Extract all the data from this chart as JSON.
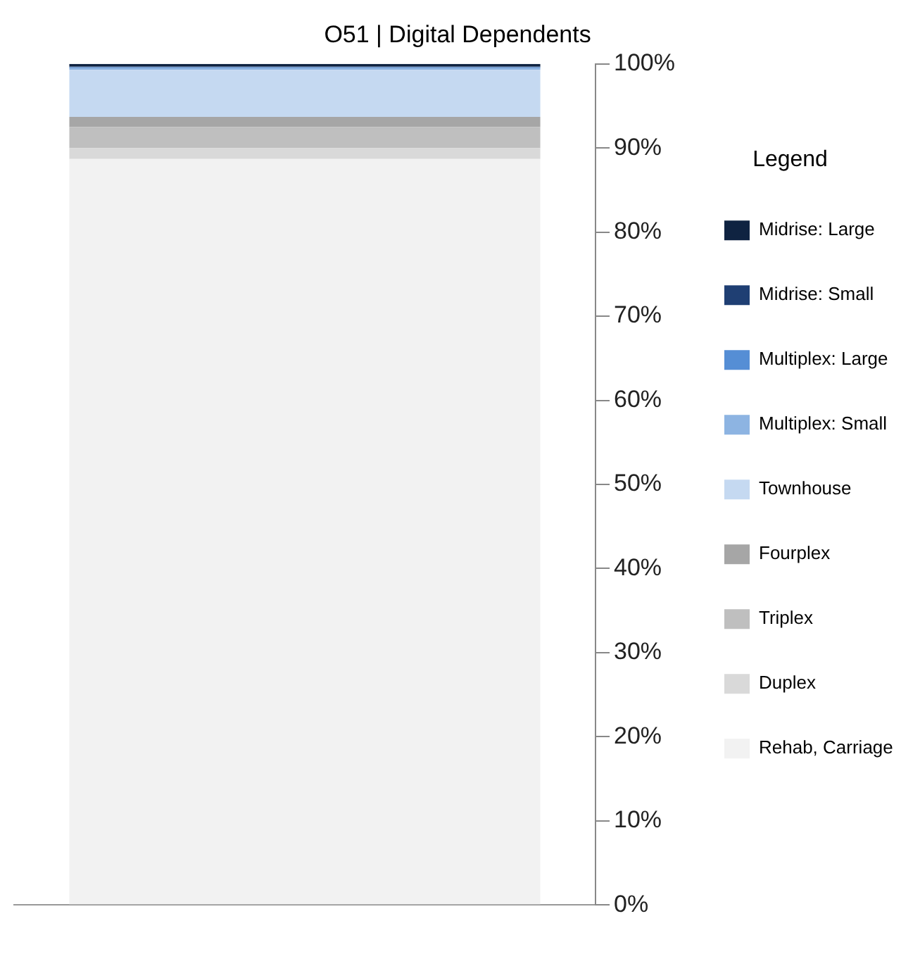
{
  "chart_data": {
    "type": "bar",
    "title": "O51 | Digital Dependents",
    "legend_title": "Legend",
    "stacked": true,
    "categories": [
      null
    ],
    "series": [
      {
        "name": "Rehab, Carriage",
        "color": "#f2f2f2",
        "values": [
          88.7
        ]
      },
      {
        "name": "Duplex",
        "color": "#d9d9d9",
        "values": [
          1.3
        ]
      },
      {
        "name": "Triplex",
        "color": "#bfbfbf",
        "values": [
          2.5
        ]
      },
      {
        "name": "Fourplex",
        "color": "#a6a6a6",
        "values": [
          1.2
        ]
      },
      {
        "name": "Townhouse",
        "color": "#c5d9f1",
        "values": [
          5.6
        ]
      },
      {
        "name": "Multiplex: Small",
        "color": "#8db4e2",
        "values": [
          0.2
        ]
      },
      {
        "name": "Multiplex: Large",
        "color": "#558ed5",
        "values": [
          0.1
        ]
      },
      {
        "name": "Midrise: Small",
        "color": "#1f3f73",
        "values": [
          0.1
        ]
      },
      {
        "name": "Midrise: Large",
        "color": "#0f2341",
        "values": [
          0.3
        ]
      }
    ],
    "ylim": [
      0,
      100
    ],
    "yticks": [
      {
        "value": 0,
        "label": "0%"
      },
      {
        "value": 10,
        "label": "10%"
      },
      {
        "value": 20,
        "label": "20%"
      },
      {
        "value": 30,
        "label": "30%"
      },
      {
        "value": 40,
        "label": "40%"
      },
      {
        "value": 50,
        "label": "50%"
      },
      {
        "value": 60,
        "label": "60%"
      },
      {
        "value": 70,
        "label": "70%"
      },
      {
        "value": 80,
        "label": "80%"
      },
      {
        "value": 90,
        "label": "90%"
      },
      {
        "value": 100,
        "label": "100%"
      }
    ],
    "grid": false,
    "legend": "right"
  }
}
